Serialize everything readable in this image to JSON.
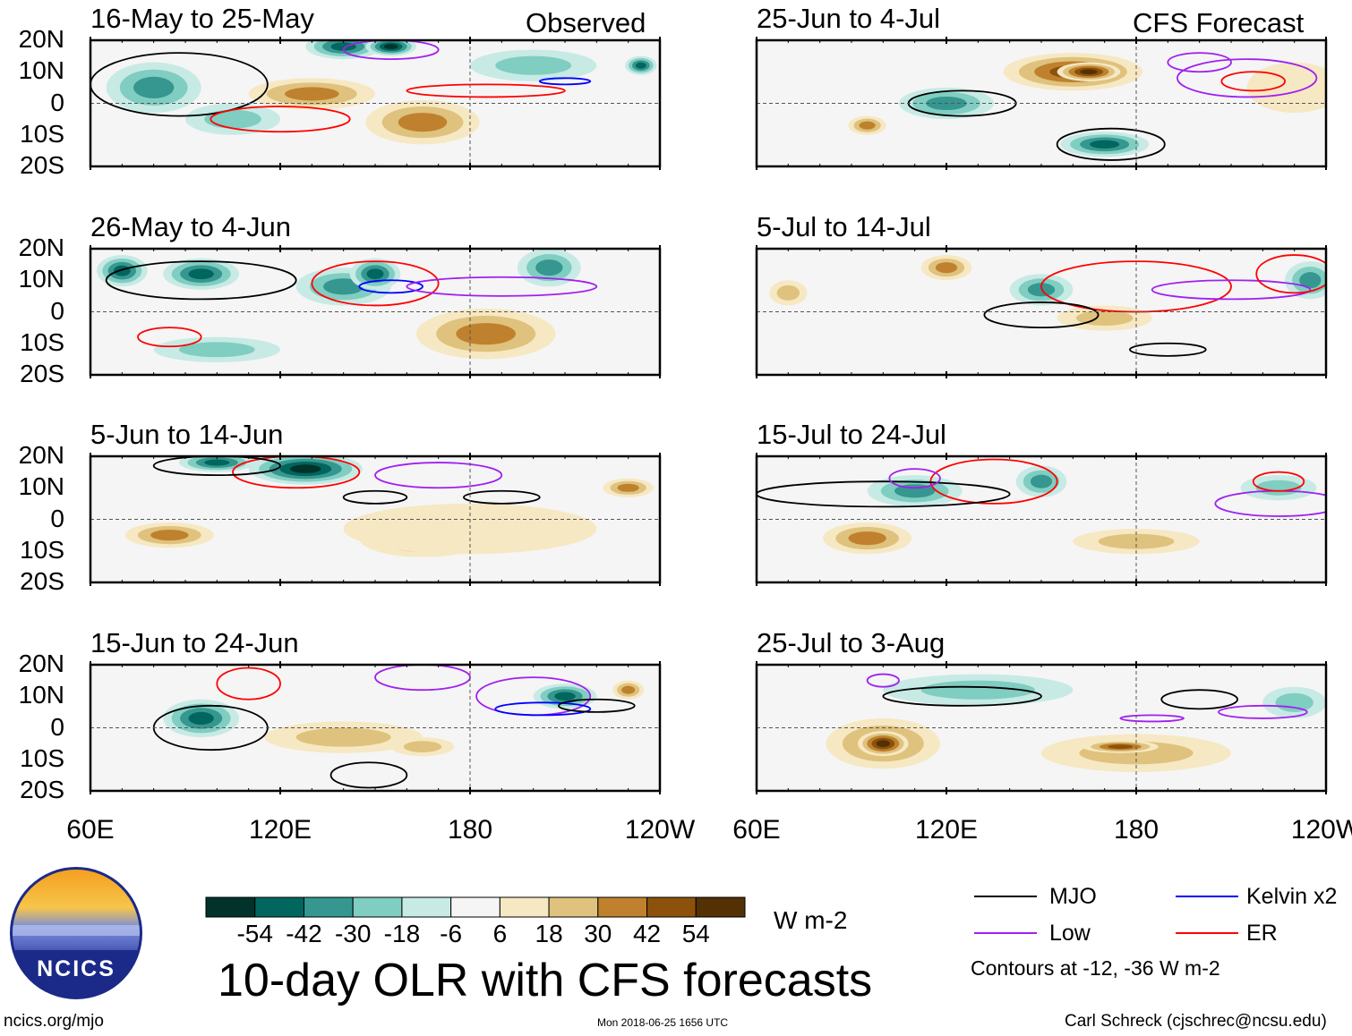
{
  "chart_data": {
    "type": "heatmap",
    "title": "10-day OLR with CFS forecasts",
    "units": "W m-2",
    "lon_range": [
      60,
      240
    ],
    "lat_range": [
      -20,
      20
    ],
    "lat_ticks": [
      "20N",
      "10N",
      "0",
      "10S",
      "20S"
    ],
    "lon_ticks": [
      "60E",
      "120E",
      "180",
      "120W"
    ],
    "labels": {
      "observed": "Observed",
      "forecast": "CFS Forecast"
    },
    "colorbar": {
      "ticks": [
        "-54",
        "-42",
        "-30",
        "-18",
        "-6",
        "6",
        "18",
        "30",
        "42",
        "54"
      ],
      "colors": [
        "#01332b",
        "#01665e",
        "#35978f",
        "#80cdc1",
        "#c7eae5",
        "#f5f5f5",
        "#f6e8c3",
        "#dfc27d",
        "#bf812d",
        "#8c510a",
        "#543005"
      ]
    },
    "contours": {
      "levels": "Contours at -12, -36 W m-2",
      "legend": [
        {
          "name": "MJO",
          "color": "#000000"
        },
        {
          "name": "Low",
          "color": "#a020f0"
        },
        {
          "name": "Kelvin x2",
          "color": "#0000ff"
        },
        {
          "name": "ER",
          "color": "#ff0000"
        }
      ]
    },
    "panels": [
      {
        "title": "16-May to 25-May",
        "col": 0,
        "row": 0,
        "anom": [
          [
            80,
            5,
            15,
            8,
            -30
          ],
          [
            140,
            18,
            12,
            4,
            -42
          ],
          [
            155,
            18,
            8,
            3,
            -54
          ],
          [
            130,
            3,
            20,
            5,
            30
          ],
          [
            165,
            -6,
            18,
            7,
            30
          ],
          [
            105,
            -5,
            15,
            5,
            -18
          ],
          [
            200,
            12,
            20,
            5,
            -18
          ],
          [
            234,
            12,
            5,
            3,
            -42
          ]
        ],
        "cont": [
          [
            88,
            6,
            28,
            10,
            "MJO"
          ],
          [
            120,
            -5,
            22,
            4,
            "ER"
          ],
          [
            155,
            17,
            15,
            3,
            "Low"
          ],
          [
            185,
            4,
            25,
            2,
            "ER"
          ],
          [
            210,
            7,
            8,
            1,
            "Kelvin x2"
          ]
        ]
      },
      {
        "title": "25-Jun to 4-Jul",
        "col": 1,
        "row": 0,
        "anom": [
          [
            160,
            10,
            22,
            6,
            42
          ],
          [
            165,
            10,
            10,
            3,
            54
          ],
          [
            120,
            0,
            15,
            5,
            -30
          ],
          [
            170,
            -13,
            14,
            4,
            -42
          ],
          [
            95,
            -7,
            6,
            3,
            30
          ],
          [
            230,
            5,
            15,
            8,
            6
          ]
        ],
        "cont": [
          [
            125,
            0,
            17,
            4,
            "MJO"
          ],
          [
            172,
            -13,
            17,
            5,
            "MJO"
          ],
          [
            215,
            8,
            22,
            6,
            "Low"
          ],
          [
            217,
            7,
            10,
            3,
            "ER"
          ],
          [
            200,
            13,
            10,
            3,
            "Low"
          ]
        ]
      },
      {
        "title": "26-May to 4-Jun",
        "col": 0,
        "row": 1,
        "anom": [
          [
            70,
            13,
            8,
            5,
            -42
          ],
          [
            95,
            12,
            12,
            5,
            -42
          ],
          [
            140,
            8,
            15,
            6,
            -30
          ],
          [
            150,
            12,
            8,
            5,
            -42
          ],
          [
            185,
            -7,
            22,
            8,
            30
          ],
          [
            100,
            -12,
            20,
            4,
            -18
          ],
          [
            205,
            14,
            10,
            6,
            -30
          ]
        ],
        "cont": [
          [
            95,
            10,
            30,
            6,
            "MJO"
          ],
          [
            150,
            9,
            20,
            7,
            "ER"
          ],
          [
            155,
            8,
            10,
            2,
            "Kelvin x2"
          ],
          [
            85,
            -8,
            10,
            3,
            "ER"
          ],
          [
            190,
            8,
            30,
            3,
            "Low"
          ]
        ]
      },
      {
        "title": "5-Jul to 14-Jul",
        "col": 1,
        "row": 1,
        "anom": [
          [
            150,
            7,
            10,
            5,
            -30
          ],
          [
            120,
            14,
            8,
            4,
            30
          ],
          [
            235,
            10,
            8,
            6,
            -30
          ],
          [
            70,
            6,
            6,
            4,
            18
          ],
          [
            170,
            -2,
            15,
            4,
            18
          ]
        ],
        "cont": [
          [
            180,
            8,
            30,
            8,
            "ER"
          ],
          [
            210,
            7,
            25,
            3,
            "Low"
          ],
          [
            150,
            -1,
            18,
            4,
            "MJO"
          ],
          [
            190,
            -12,
            12,
            2,
            "MJO"
          ],
          [
            230,
            12,
            12,
            6,
            "ER"
          ]
        ]
      },
      {
        "title": "5-Jun to 14-Jun",
        "col": 0,
        "row": 2,
        "anom": [
          [
            85,
            -5,
            14,
            4,
            30
          ],
          [
            165,
            -6,
            20,
            6,
            30
          ],
          [
            128,
            16,
            18,
            5,
            -54
          ],
          [
            100,
            18,
            12,
            3,
            -42
          ],
          [
            230,
            10,
            8,
            3,
            30
          ],
          [
            180,
            -3,
            40,
            8,
            6
          ]
        ],
        "cont": [
          [
            170,
            14,
            20,
            4,
            "Low"
          ],
          [
            125,
            15,
            20,
            5,
            "ER"
          ],
          [
            190,
            7,
            12,
            2,
            "MJO"
          ],
          [
            150,
            7,
            10,
            2,
            "MJO"
          ],
          [
            100,
            17,
            20,
            3,
            "MJO"
          ]
        ]
      },
      {
        "title": "15-Jul to 24-Jul",
        "col": 1,
        "row": 2,
        "anom": [
          [
            95,
            -6,
            14,
            5,
            30
          ],
          [
            180,
            -7,
            20,
            4,
            18
          ],
          [
            110,
            9,
            15,
            5,
            -30
          ],
          [
            150,
            12,
            8,
            5,
            -30
          ],
          [
            225,
            10,
            12,
            4,
            -18
          ]
        ],
        "cont": [
          [
            135,
            12,
            20,
            7,
            "ER"
          ],
          [
            100,
            8,
            40,
            4,
            "MJO"
          ],
          [
            225,
            5,
            20,
            4,
            "Low"
          ],
          [
            225,
            12,
            8,
            3,
            "ER"
          ],
          [
            110,
            13,
            8,
            3,
            "Low"
          ]
        ]
      },
      {
        "title": "15-Jun to 24-Jun",
        "col": 0,
        "row": 3,
        "anom": [
          [
            95,
            3,
            12,
            6,
            -42
          ],
          [
            140,
            -3,
            25,
            5,
            18
          ],
          [
            210,
            10,
            10,
            4,
            -42
          ],
          [
            165,
            -6,
            10,
            3,
            18
          ],
          [
            230,
            12,
            5,
            3,
            30
          ]
        ],
        "cont": [
          [
            98,
            0,
            18,
            7,
            "MJO"
          ],
          [
            165,
            16,
            15,
            4,
            "Low"
          ],
          [
            200,
            10,
            18,
            6,
            "Low"
          ],
          [
            203,
            6,
            15,
            2,
            "Kelvin x2"
          ],
          [
            220,
            7,
            12,
            2,
            "MJO"
          ],
          [
            148,
            -15,
            12,
            4,
            "MJO"
          ],
          [
            110,
            14,
            10,
            5,
            "ER"
          ]
        ]
      },
      {
        "title": "25-Jul to 3-Aug",
        "col": 1,
        "row": 3,
        "anom": [
          [
            100,
            -5,
            18,
            8,
            30
          ],
          [
            100,
            -5,
            8,
            4,
            54
          ],
          [
            180,
            -8,
            30,
            6,
            18
          ],
          [
            175,
            -6,
            12,
            2,
            42
          ],
          [
            130,
            12,
            30,
            5,
            -18
          ],
          [
            230,
            8,
            10,
            5,
            -18
          ]
        ],
        "cont": [
          [
            125,
            10,
            25,
            3,
            "MJO"
          ],
          [
            200,
            9,
            12,
            3,
            "MJO"
          ],
          [
            220,
            5,
            14,
            2,
            "Low"
          ],
          [
            185,
            3,
            10,
            1,
            "Low"
          ],
          [
            100,
            15,
            5,
            2,
            "Low"
          ]
        ]
      }
    ]
  },
  "footer": {
    "logo_text": "NCICS",
    "site": "ncics.org/mjo",
    "timestamp": "Mon 2018-06-25 1656 UTC",
    "author": "Carl Schreck (cjschrec@ncsu.edu)"
  }
}
